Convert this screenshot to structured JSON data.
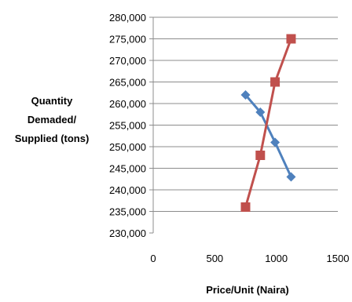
{
  "chart_data": {
    "type": "line",
    "xlabel": "Price/Unit (Naira)",
    "ylabel_lines": [
      "Quantity",
      "Demaded/",
      "Supplied (tons)"
    ],
    "xlim": [
      0,
      1500
    ],
    "ylim": [
      230000,
      280000
    ],
    "xticks": [
      0,
      500,
      1000,
      1500
    ],
    "xtick_labels": [
      "0",
      "500",
      "1000",
      "1500"
    ],
    "yticks": [
      230000,
      235000,
      240000,
      245000,
      250000,
      255000,
      260000,
      265000,
      270000,
      275000,
      280000
    ],
    "ytick_labels": [
      "230,000",
      "235,000",
      "240,000",
      "245,000",
      "250,000",
      "255,000",
      "260,000",
      "265,000",
      "270,000",
      "275,000",
      "280,000"
    ],
    "grid": "horizontal",
    "series": [
      {
        "color": "#4F81BD",
        "marker": "diamond",
        "points": [
          {
            "x": 750,
            "y": 262000
          },
          {
            "x": 870,
            "y": 258000
          },
          {
            "x": 990,
            "y": 251000
          },
          {
            "x": 1120,
            "y": 243000
          }
        ]
      },
      {
        "color": "#C0504D",
        "marker": "square",
        "points": [
          {
            "x": 750,
            "y": 236000
          },
          {
            "x": 870,
            "y": 248000
          },
          {
            "x": 990,
            "y": 265000
          },
          {
            "x": 1120,
            "y": 275000
          }
        ]
      }
    ]
  }
}
